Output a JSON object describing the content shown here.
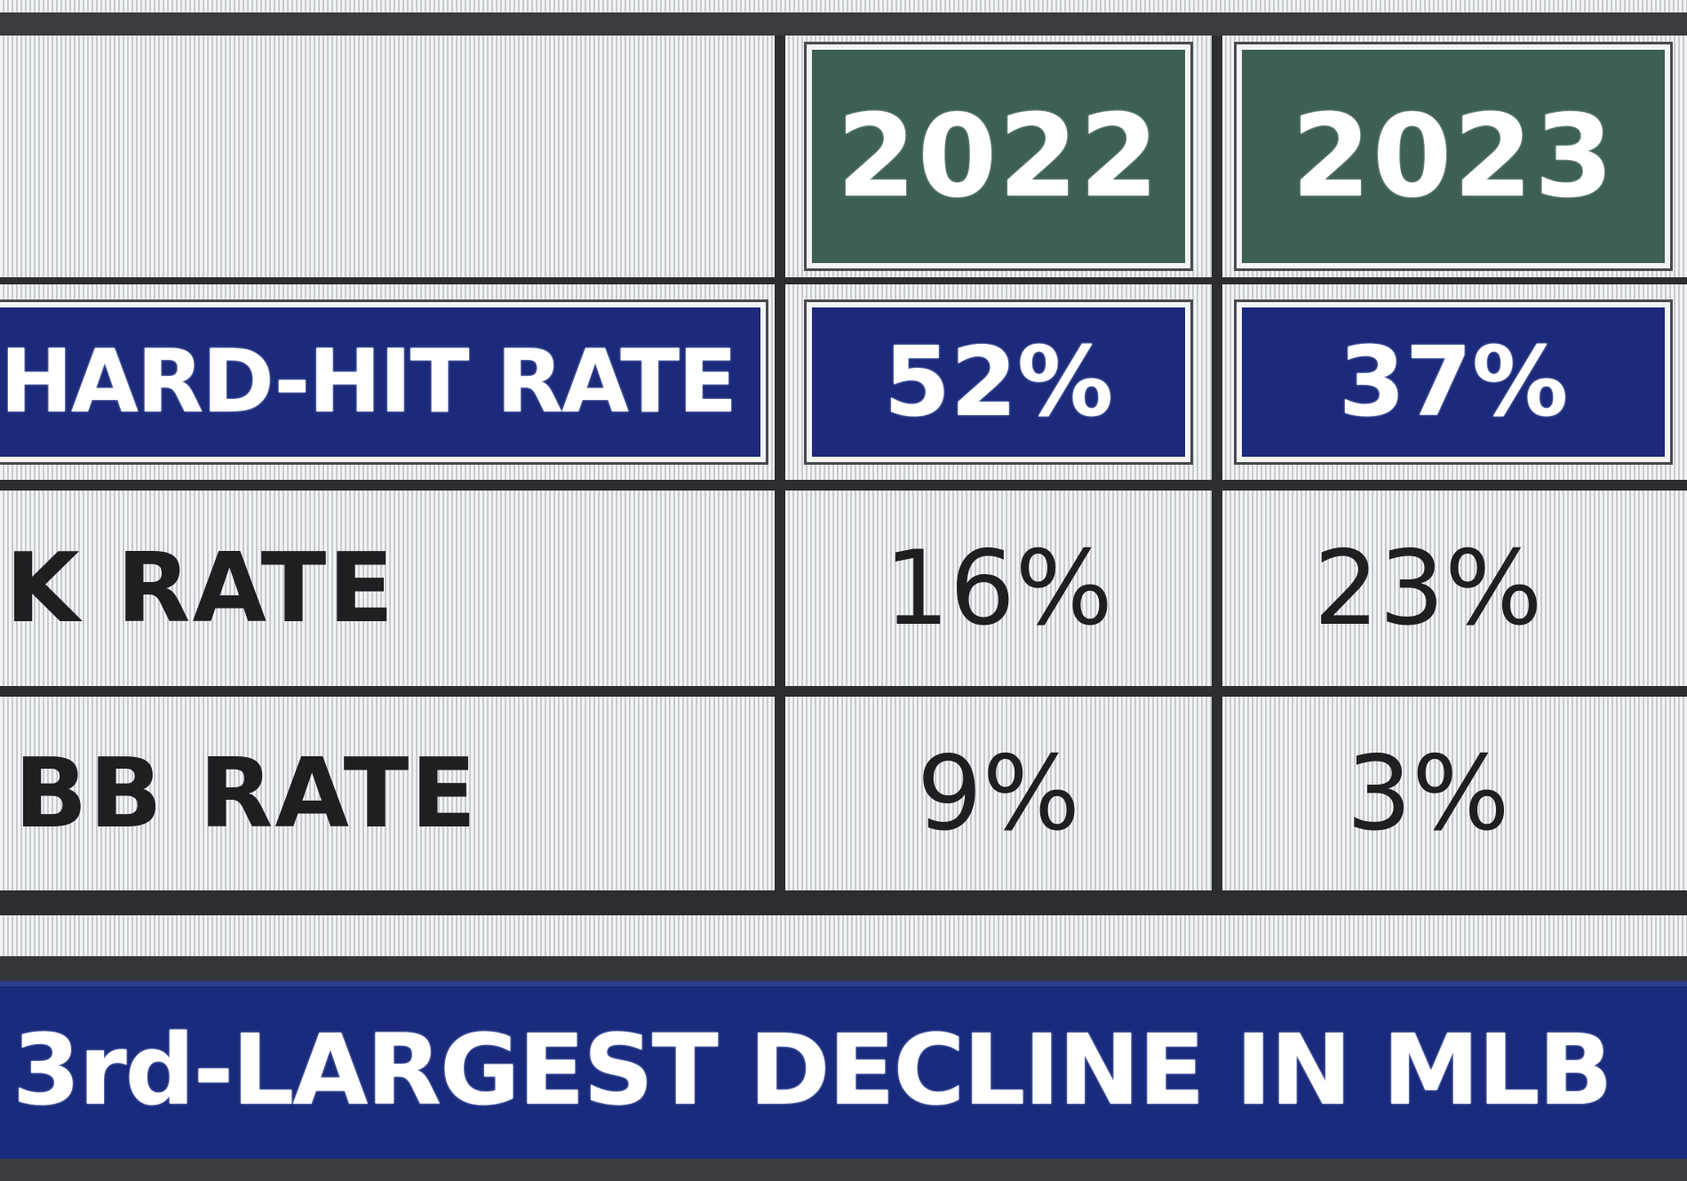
{
  "table": {
    "columns": [
      "2022",
      "2023"
    ],
    "rows": [
      {
        "label": "HARD-HIT RATE",
        "values": [
          "52%",
          "37%"
        ],
        "highlighted": true
      },
      {
        "label": "K RATE",
        "values": [
          "16%",
          "23%"
        ],
        "highlighted": false
      },
      {
        "label": "BB RATE",
        "values": [
          "9%",
          "3%"
        ],
        "highlighted": false
      }
    ]
  },
  "footer": {
    "caption": "3rd-LARGEST DECLINE IN MLB"
  },
  "colors": {
    "header_green": "#3e5f53",
    "highlight_blue": "#1b2a7a",
    "footer_blue": "#1a2a7c",
    "cell_background": "#e6e7ea",
    "dark_text": "#1f1f22"
  }
}
